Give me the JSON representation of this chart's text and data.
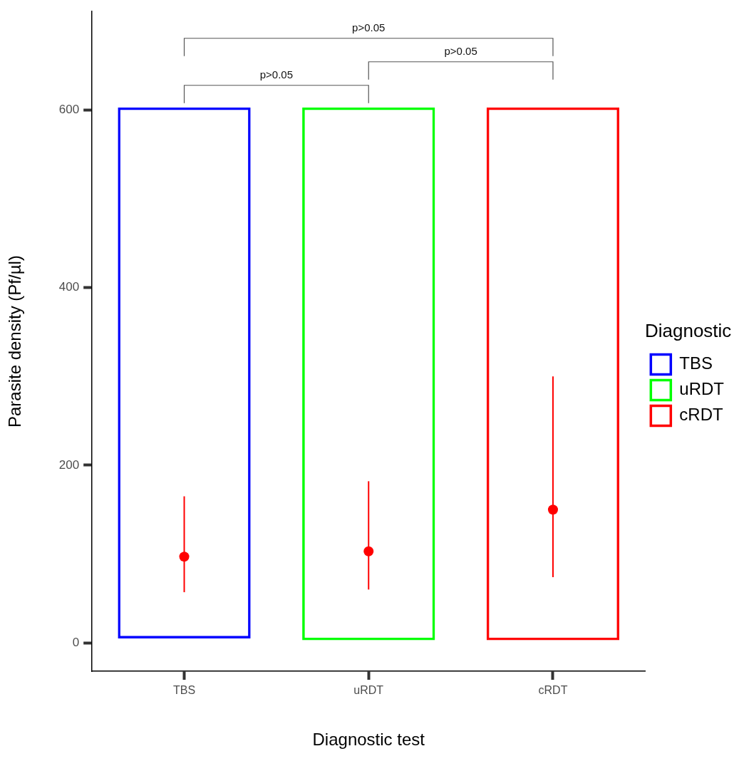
{
  "chart_data": {
    "type": "bar",
    "xlabel": "Diagnostic test",
    "ylabel": "Parasite density (Pf/µl)",
    "legend_title": "Diagnostic",
    "legend": "right",
    "categories": [
      "TBS",
      "uRDT",
      "cRDT"
    ],
    "ylim": [
      -32,
      711
    ],
    "yticks": [
      0,
      200,
      400,
      600
    ],
    "annotations": [
      "p>0.05",
      "p>0.05",
      "p>0.05"
    ],
    "series": [
      {
        "name": "TBS",
        "color": "#0000ff",
        "base": [
          5,
          null,
          null
        ],
        "values": [
          598,
          null,
          null
        ]
      },
      {
        "name": "uRDT",
        "color": "#00ff00",
        "base": [
          null,
          3,
          null
        ],
        "values": [
          null,
          600,
          null
        ]
      },
      {
        "name": "cRDT",
        "color": "#ff0000",
        "base": [
          null,
          null,
          3
        ],
        "values": [
          null,
          null,
          600
        ]
      },
      {
        "type": "scatter",
        "color": "#ff0000",
        "marker": "circle",
        "x": [
          "TBS",
          "uRDT",
          "cRDT"
        ],
        "values": [
          97,
          103,
          150
        ],
        "errors": [
          [
            57,
            165
          ],
          [
            60,
            182
          ],
          [
            74,
            300
          ]
        ]
      }
    ]
  }
}
